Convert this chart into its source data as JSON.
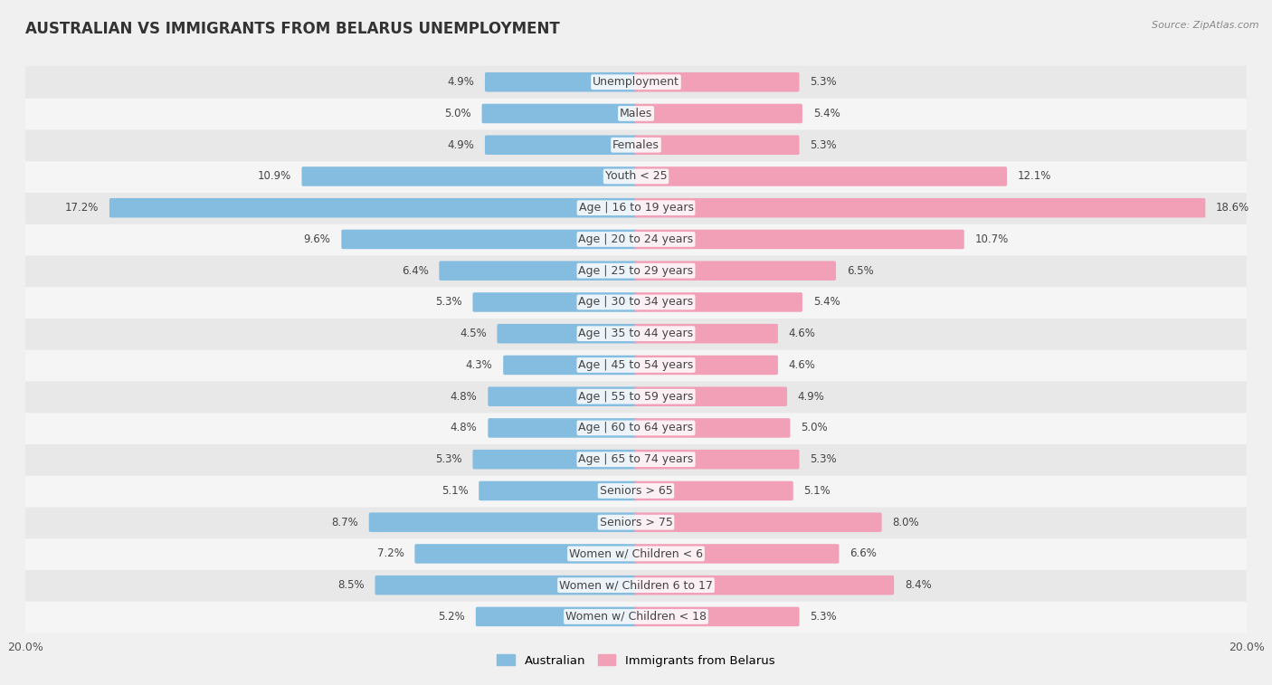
{
  "title": "AUSTRALIAN VS IMMIGRANTS FROM BELARUS UNEMPLOYMENT",
  "source": "Source: ZipAtlas.com",
  "categories": [
    "Unemployment",
    "Males",
    "Females",
    "Youth < 25",
    "Age | 16 to 19 years",
    "Age | 20 to 24 years",
    "Age | 25 to 29 years",
    "Age | 30 to 34 years",
    "Age | 35 to 44 years",
    "Age | 45 to 54 years",
    "Age | 55 to 59 years",
    "Age | 60 to 64 years",
    "Age | 65 to 74 years",
    "Seniors > 65",
    "Seniors > 75",
    "Women w/ Children < 6",
    "Women w/ Children 6 to 17",
    "Women w/ Children < 18"
  ],
  "australian": [
    4.9,
    5.0,
    4.9,
    10.9,
    17.2,
    9.6,
    6.4,
    5.3,
    4.5,
    4.3,
    4.8,
    4.8,
    5.3,
    5.1,
    8.7,
    7.2,
    8.5,
    5.2
  ],
  "immigrants": [
    5.3,
    5.4,
    5.3,
    12.1,
    18.6,
    10.7,
    6.5,
    5.4,
    4.6,
    4.6,
    4.9,
    5.0,
    5.3,
    5.1,
    8.0,
    6.6,
    8.4,
    5.3
  ],
  "australian_color": "#85bde0",
  "immigrants_color": "#f2a0b8",
  "row_color_light": "#f5f5f5",
  "row_color_dark": "#e8e8e8",
  "background_color": "#f0f0f0",
  "axis_max": 20.0,
  "legend_australian": "Australian",
  "legend_immigrants": "Immigrants from Belarus",
  "title_fontsize": 12,
  "label_fontsize": 9,
  "value_fontsize": 8.5
}
